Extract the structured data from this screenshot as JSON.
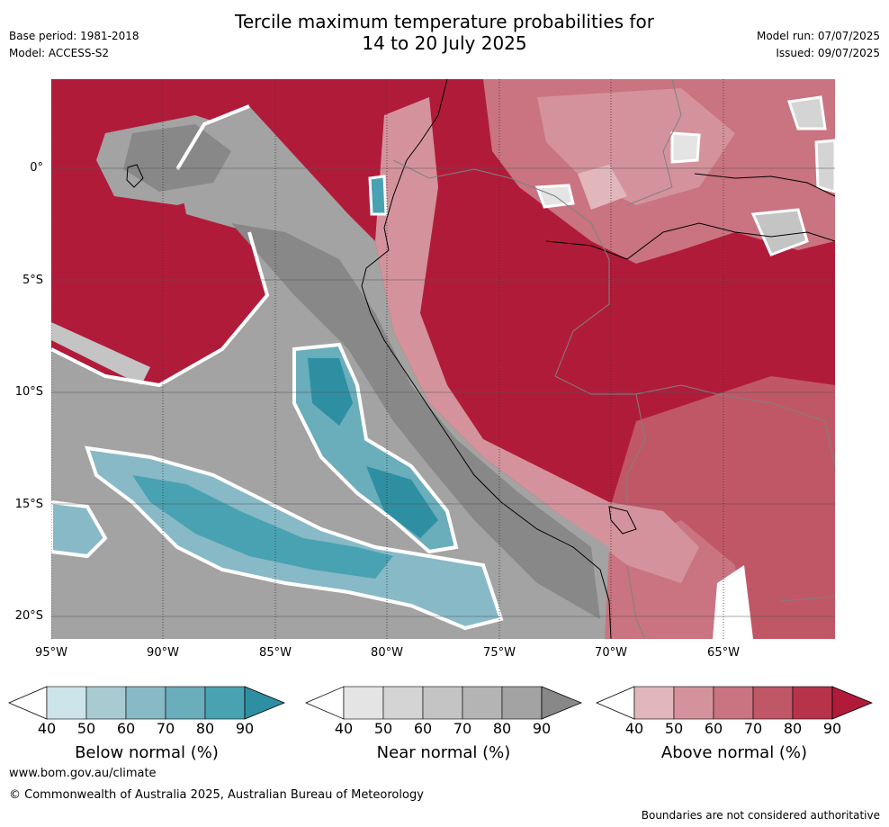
{
  "header": {
    "base_period": "Base period: 1981-2018",
    "model": "Model: ACCESS-S2",
    "title_line1": "Tercile maximum temperature probabilities for",
    "title_line2": "14 to 20 July 2025",
    "model_run": "Model run: 07/07/2025",
    "issued": "Issued: 09/07/2025"
  },
  "map": {
    "lat_labels": [
      "0°",
      "5°S",
      "10°S",
      "15°S",
      "20°S"
    ],
    "lon_labels": [
      "95°W",
      "90°W",
      "85°W",
      "80°W",
      "75°W",
      "70°W",
      "65°W"
    ],
    "extent": {
      "lon_min": -95,
      "lon_max": -60,
      "lat_min": -21,
      "lat_max": 4
    }
  },
  "legends": {
    "ticks": [
      "40",
      "50",
      "60",
      "70",
      "80",
      "90"
    ],
    "below": {
      "label": "Below normal (%)",
      "colors": [
        "#ffffff",
        "#cce4ea",
        "#a9cad1",
        "#88b9c6",
        "#6aadbb",
        "#49a2b2",
        "#2e8fa2"
      ]
    },
    "near": {
      "label": "Near normal (%)",
      "colors": [
        "#ffffff",
        "#e4e4e4",
        "#d4d4d4",
        "#c4c4c4",
        "#b4b4b4",
        "#a3a3a3",
        "#888888"
      ]
    },
    "above": {
      "label": "Above normal (%)",
      "colors": [
        "#ffffff",
        "#e1b7bc",
        "#d4939c",
        "#c97480",
        "#c05767",
        "#b7334a",
        "#b11b3a"
      ]
    }
  },
  "footer": {
    "url": "www.bom.gov.au/climate",
    "copyright": "© Commonwealth of Australia 2025, Australian Bureau of Meteorology",
    "disclaimer": "Boundaries are not considered authoritative"
  }
}
